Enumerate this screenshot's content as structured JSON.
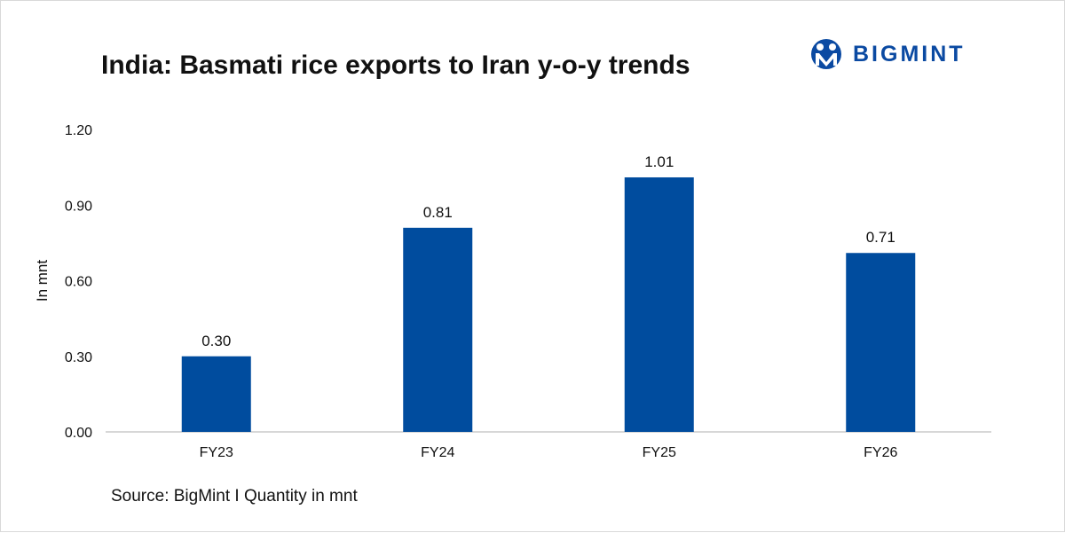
{
  "logo": {
    "text": "BIGMINT",
    "color": "#0b4aa2"
  },
  "source": "Source: BigMint I Quantity in mnt",
  "chart_data": {
    "type": "bar",
    "title": "India: Basmati rice exports to Iran y-o-y trends",
    "xlabel": "",
    "ylabel": "In mnt",
    "categories": [
      "FY23",
      "FY24",
      "FY25",
      "FY26"
    ],
    "values": [
      0.3,
      0.81,
      1.01,
      0.71
    ],
    "data_labels": [
      "0.30",
      "0.81",
      "1.01",
      "0.71"
    ],
    "ylim": [
      0,
      1.2
    ],
    "yticks": [
      0.0,
      0.3,
      0.6,
      0.9,
      1.2
    ],
    "ytick_labels": [
      "0.00",
      "0.30",
      "0.60",
      "0.90",
      "1.20"
    ],
    "grid": false,
    "legend": "none",
    "bar_color": "#004c9e"
  }
}
